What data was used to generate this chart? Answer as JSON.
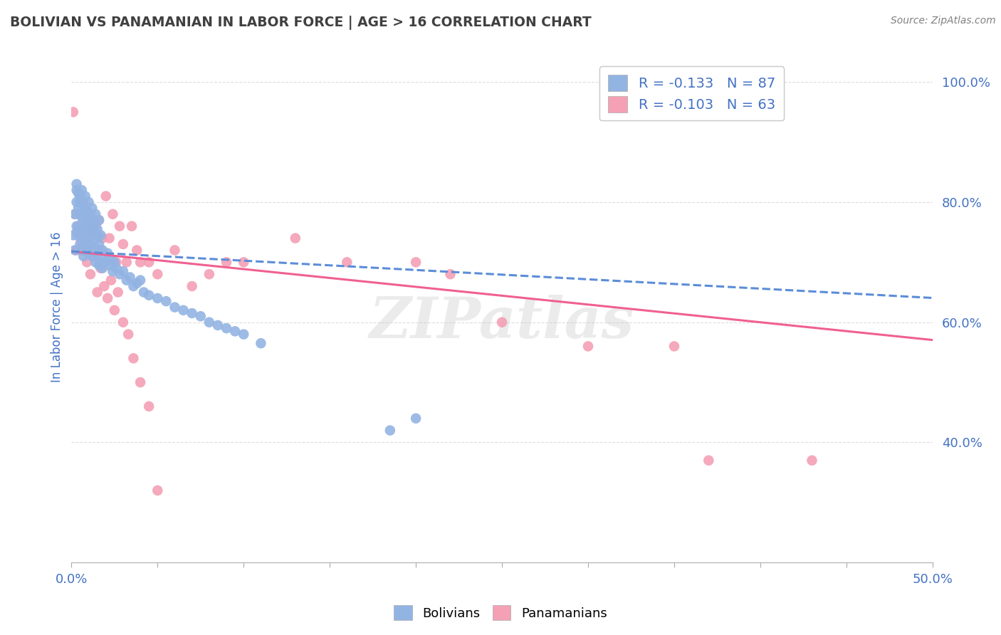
{
  "title": "BOLIVIAN VS PANAMANIAN IN LABOR FORCE | AGE > 16 CORRELATION CHART",
  "source": "Source: ZipAtlas.com",
  "ylabel_label": "In Labor Force | Age > 16",
  "x_min": 0.0,
  "x_max": 0.5,
  "y_min": 0.2,
  "y_max": 1.05,
  "y_ticks": [
    0.4,
    0.6,
    0.8,
    1.0
  ],
  "y_tick_labels": [
    "40.0%",
    "60.0%",
    "80.0%",
    "100.0%"
  ],
  "bolivian_color": "#92b4e3",
  "panamanian_color": "#f4a0b5",
  "bolivian_trend_color": "#5b8dd9",
  "panamanian_trend_color": "#f06090",
  "watermark_text": "ZIPatlas",
  "watermark_color": "#c8c8c8",
  "legend_r_bolivian": "-0.133",
  "legend_n_bolivian": "87",
  "legend_r_panamanian": "-0.103",
  "legend_n_panamanian": "63",
  "bolivian_x": [
    0.001,
    0.002,
    0.002,
    0.003,
    0.003,
    0.003,
    0.004,
    0.004,
    0.004,
    0.005,
    0.005,
    0.005,
    0.006,
    0.006,
    0.006,
    0.007,
    0.007,
    0.007,
    0.008,
    0.008,
    0.008,
    0.009,
    0.009,
    0.01,
    0.01,
    0.01,
    0.011,
    0.011,
    0.012,
    0.012,
    0.013,
    0.013,
    0.014,
    0.014,
    0.015,
    0.015,
    0.016,
    0.016,
    0.017,
    0.018,
    0.018,
    0.019,
    0.02,
    0.021,
    0.022,
    0.023,
    0.024,
    0.025,
    0.026,
    0.028,
    0.03,
    0.032,
    0.034,
    0.036,
    0.038,
    0.04,
    0.042,
    0.045,
    0.05,
    0.055,
    0.06,
    0.065,
    0.07,
    0.075,
    0.08,
    0.085,
    0.09,
    0.095,
    0.1,
    0.11,
    0.003,
    0.004,
    0.005,
    0.006,
    0.007,
    0.008,
    0.009,
    0.01,
    0.011,
    0.012,
    0.013,
    0.014,
    0.015,
    0.016,
    0.017,
    0.185,
    0.2
  ],
  "bolivian_y": [
    0.745,
    0.78,
    0.72,
    0.8,
    0.76,
    0.82,
    0.745,
    0.79,
    0.755,
    0.78,
    0.73,
    0.81,
    0.75,
    0.72,
    0.775,
    0.74,
    0.77,
    0.71,
    0.755,
    0.73,
    0.79,
    0.72,
    0.76,
    0.74,
    0.715,
    0.77,
    0.73,
    0.76,
    0.71,
    0.75,
    0.725,
    0.755,
    0.7,
    0.74,
    0.715,
    0.745,
    0.695,
    0.73,
    0.7,
    0.72,
    0.69,
    0.71,
    0.7,
    0.715,
    0.695,
    0.705,
    0.685,
    0.7,
    0.69,
    0.68,
    0.685,
    0.67,
    0.675,
    0.66,
    0.665,
    0.67,
    0.65,
    0.645,
    0.64,
    0.635,
    0.625,
    0.62,
    0.615,
    0.61,
    0.6,
    0.595,
    0.59,
    0.585,
    0.58,
    0.565,
    0.83,
    0.815,
    0.8,
    0.82,
    0.795,
    0.81,
    0.785,
    0.8,
    0.775,
    0.79,
    0.765,
    0.78,
    0.755,
    0.77,
    0.745,
    0.42,
    0.44
  ],
  "panamanian_x": [
    0.001,
    0.002,
    0.003,
    0.004,
    0.005,
    0.006,
    0.007,
    0.008,
    0.009,
    0.01,
    0.011,
    0.012,
    0.013,
    0.014,
    0.015,
    0.016,
    0.017,
    0.018,
    0.02,
    0.022,
    0.024,
    0.026,
    0.028,
    0.03,
    0.032,
    0.035,
    0.038,
    0.04,
    0.045,
    0.05,
    0.06,
    0.07,
    0.08,
    0.09,
    0.1,
    0.13,
    0.16,
    0.2,
    0.22,
    0.25,
    0.3,
    0.35,
    0.43,
    0.003,
    0.005,
    0.007,
    0.009,
    0.011,
    0.013,
    0.015,
    0.017,
    0.019,
    0.021,
    0.023,
    0.025,
    0.027,
    0.03,
    0.033,
    0.036,
    0.04,
    0.045,
    0.05,
    0.37
  ],
  "panamanian_y": [
    0.95,
    0.78,
    0.75,
    0.76,
    0.74,
    0.73,
    0.8,
    0.72,
    0.76,
    0.74,
    0.78,
    0.75,
    0.72,
    0.76,
    0.72,
    0.77,
    0.72,
    0.74,
    0.81,
    0.74,
    0.78,
    0.7,
    0.76,
    0.73,
    0.7,
    0.76,
    0.72,
    0.7,
    0.7,
    0.68,
    0.72,
    0.66,
    0.68,
    0.7,
    0.7,
    0.74,
    0.7,
    0.7,
    0.68,
    0.6,
    0.56,
    0.56,
    0.37,
    0.72,
    0.75,
    0.73,
    0.7,
    0.68,
    0.71,
    0.65,
    0.69,
    0.66,
    0.64,
    0.67,
    0.62,
    0.65,
    0.6,
    0.58,
    0.54,
    0.5,
    0.46,
    0.32,
    0.37
  ],
  "background_color": "#ffffff",
  "grid_color": "#dddddd",
  "axis_label_color": "#4472c4",
  "tick_label_color": "#4472c4",
  "title_color": "#404040",
  "source_color": "#808080",
  "bolivian_trend_intercept": 0.718,
  "bolivian_trend_slope": -0.155,
  "panamanian_trend_intercept": 0.718,
  "panamanian_trend_slope": -0.295
}
